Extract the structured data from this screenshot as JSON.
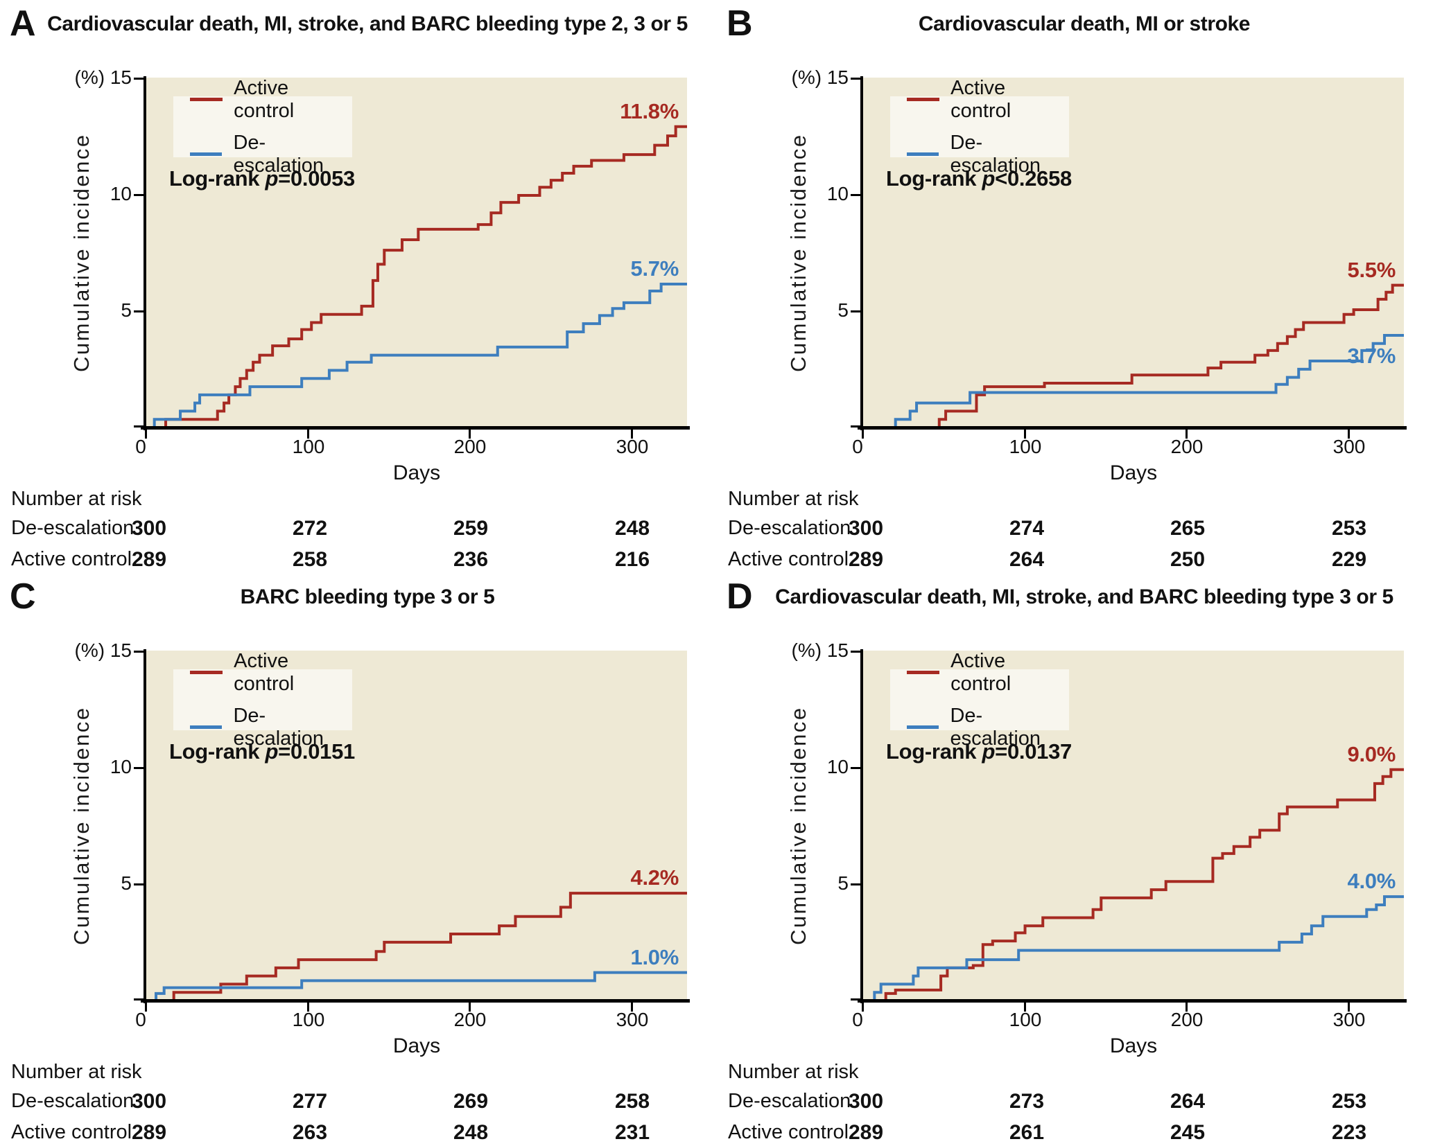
{
  "colors": {
    "active_control": "#a62a22",
    "de_escalation": "#3d7ebe",
    "plot_background": "#eee9d5",
    "legend_background": "#f8f6ee",
    "axis": "#000000",
    "text": "#111111"
  },
  "axis": {
    "y_top_label": "(%) 15",
    "y_tick_10": "10",
    "y_tick_5": "5",
    "x_tick_0": "0",
    "x_tick_1": "100",
    "x_tick_2": "200",
    "x_tick_3": "300"
  },
  "chart_data": [
    {
      "type": "line",
      "panel": "A",
      "title": "Cardiovascular death, MI, stroke, and BARC bleeding type 2, 3 or 5",
      "x_label": "Days",
      "y_label": "Cumulative incidence",
      "xlim": [
        0,
        334
      ],
      "ylim": [
        0,
        15
      ],
      "x_ticks": [
        0,
        100,
        200,
        300
      ],
      "y_ticks": [
        0,
        5,
        10,
        15
      ],
      "grid": false,
      "legend_position": "upper-left",
      "logrank": {
        "prefix": "Log-rank ",
        "p": "p",
        "value": "=0.0053"
      },
      "series": [
        {
          "name": "Active control",
          "color": "#a62a22",
          "end_label": "11.8%",
          "end_label_position": "above",
          "steps": [
            [
              0,
              0
            ],
            [
              12,
              0.35
            ],
            [
              44,
              0.7
            ],
            [
              48,
              1.05
            ],
            [
              51,
              1.4
            ],
            [
              55,
              1.75
            ],
            [
              58,
              2.1
            ],
            [
              62,
              2.45
            ],
            [
              66,
              2.8
            ],
            [
              70,
              3.1
            ],
            [
              78,
              3.5
            ],
            [
              88,
              3.8
            ],
            [
              96,
              4.2
            ],
            [
              102,
              4.5
            ],
            [
              108,
              4.85
            ],
            [
              133,
              5.2
            ],
            [
              140,
              6.3
            ],
            [
              143,
              7.0
            ],
            [
              147,
              7.6
            ],
            [
              158,
              8.05
            ],
            [
              168,
              8.5
            ],
            [
              205,
              8.7
            ],
            [
              213,
              9.2
            ],
            [
              219,
              9.65
            ],
            [
              230,
              9.95
            ],
            [
              243,
              10.3
            ],
            [
              250,
              10.6
            ],
            [
              257,
              10.9
            ],
            [
              264,
              11.2
            ],
            [
              275,
              11.45
            ],
            [
              295,
              11.7
            ],
            [
              314,
              12.1
            ],
            [
              322,
              12.5
            ],
            [
              327,
              12.9
            ]
          ]
        },
        {
          "name": "De-escalation",
          "color": "#3d7ebe",
          "end_label": "5.7%",
          "end_label_position": "above",
          "steps": [
            [
              0,
              0
            ],
            [
              5,
              0.35
            ],
            [
              21,
              0.7
            ],
            [
              30,
              1.05
            ],
            [
              33,
              1.4
            ],
            [
              64,
              1.75
            ],
            [
              96,
              2.1
            ],
            [
              113,
              2.45
            ],
            [
              124,
              2.8
            ],
            [
              139,
              3.1
            ],
            [
              217,
              3.45
            ],
            [
              260,
              4.1
            ],
            [
              270,
              4.45
            ],
            [
              280,
              4.8
            ],
            [
              288,
              5.1
            ],
            [
              295,
              5.35
            ],
            [
              311,
              5.85
            ],
            [
              318,
              6.15
            ]
          ]
        }
      ],
      "number_at_risk": {
        "header": "Number at risk",
        "rows": [
          {
            "label": "De-escalation",
            "values": [
              "300",
              "272",
              "259",
              "248"
            ]
          },
          {
            "label": "Active control",
            "values": [
              "289",
              "258",
              "236",
              "216"
            ]
          }
        ]
      }
    },
    {
      "type": "line",
      "panel": "B",
      "title": "Cardiovascular death, MI or stroke",
      "x_label": "Days",
      "y_label": "Cumulative incidence",
      "xlim": [
        0,
        334
      ],
      "ylim": [
        0,
        15
      ],
      "x_ticks": [
        0,
        100,
        200,
        300
      ],
      "y_ticks": [
        0,
        5,
        10,
        15
      ],
      "grid": false,
      "legend_position": "upper-left",
      "logrank": {
        "prefix": "Log-rank ",
        "p": "p",
        "value": "<0.2658"
      },
      "series": [
        {
          "name": "Active control",
          "color": "#a62a22",
          "end_label": "5.5%",
          "end_label_position": "above",
          "steps": [
            [
              0,
              0
            ],
            [
              47,
              0.35
            ],
            [
              51,
              0.7
            ],
            [
              70,
              1.4
            ],
            [
              75,
              1.75
            ],
            [
              112,
              1.9
            ],
            [
              166,
              2.25
            ],
            [
              213,
              2.55
            ],
            [
              221,
              2.8
            ],
            [
              242,
              3.1
            ],
            [
              250,
              3.3
            ],
            [
              256,
              3.6
            ],
            [
              262,
              3.9
            ],
            [
              267,
              4.2
            ],
            [
              272,
              4.5
            ],
            [
              297,
              4.85
            ],
            [
              303,
              5.05
            ],
            [
              318,
              5.5
            ],
            [
              323,
              5.8
            ],
            [
              327,
              6.1
            ]
          ]
        },
        {
          "name": "De-escalation",
          "color": "#3d7ebe",
          "end_label": "3.7%",
          "end_label_position": "below",
          "steps": [
            [
              0,
              0
            ],
            [
              20,
              0.35
            ],
            [
              29,
              0.7
            ],
            [
              33,
              1.05
            ],
            [
              66,
              1.5
            ],
            [
              255,
              1.85
            ],
            [
              262,
              2.15
            ],
            [
              269,
              2.5
            ],
            [
              276,
              2.85
            ],
            [
              308,
              3.3
            ],
            [
              315,
              3.6
            ],
            [
              322,
              3.95
            ]
          ]
        }
      ],
      "number_at_risk": {
        "header": "Number at risk",
        "rows": [
          {
            "label": "De-escalation",
            "values": [
              "300",
              "274",
              "265",
              "253"
            ]
          },
          {
            "label": "Active control",
            "values": [
              "289",
              "264",
              "250",
              "229"
            ]
          }
        ]
      }
    },
    {
      "type": "line",
      "panel": "C",
      "title": "BARC bleeding type 3 or 5",
      "x_label": "Days",
      "y_label": "Cumulative incidence",
      "xlim": [
        0,
        334
      ],
      "ylim": [
        0,
        15
      ],
      "x_ticks": [
        0,
        100,
        200,
        300
      ],
      "y_ticks": [
        0,
        5,
        10,
        15
      ],
      "grid": false,
      "legend_position": "upper-left",
      "logrank": {
        "prefix": "Log-rank ",
        "p": "p",
        "value": "=0.0151"
      },
      "series": [
        {
          "name": "Active control",
          "color": "#a62a22",
          "end_label": "4.2%",
          "end_label_position": "above",
          "steps": [
            [
              0,
              0
            ],
            [
              17,
              0.35
            ],
            [
              46,
              0.7
            ],
            [
              62,
              1.05
            ],
            [
              80,
              1.4
            ],
            [
              94,
              1.75
            ],
            [
              142,
              2.1
            ],
            [
              147,
              2.5
            ],
            [
              188,
              2.85
            ],
            [
              218,
              3.2
            ],
            [
              228,
              3.6
            ],
            [
              256,
              4.0
            ],
            [
              262,
              4.6
            ]
          ]
        },
        {
          "name": "De-escalation",
          "color": "#3d7ebe",
          "end_label": "1.0%",
          "end_label_position": "above",
          "steps": [
            [
              0,
              0
            ],
            [
              6,
              0.3
            ],
            [
              11,
              0.55
            ],
            [
              96,
              0.85
            ],
            [
              277,
              1.2
            ]
          ]
        }
      ],
      "number_at_risk": {
        "header": "Number at risk",
        "rows": [
          {
            "label": "De-escalation",
            "values": [
              "300",
              "277",
              "269",
              "258"
            ]
          },
          {
            "label": "Active control",
            "values": [
              "289",
              "263",
              "248",
              "231"
            ]
          }
        ]
      }
    },
    {
      "type": "line",
      "panel": "D",
      "title": "Cardiovascular death, MI, stroke, and BARC bleeding type 3 or 5",
      "x_label": "Days",
      "y_label": "Cumulative incidence",
      "xlim": [
        0,
        334
      ],
      "ylim": [
        0,
        15
      ],
      "x_ticks": [
        0,
        100,
        200,
        300
      ],
      "y_ticks": [
        0,
        5,
        10,
        15
      ],
      "grid": false,
      "legend_position": "upper-left",
      "logrank": {
        "prefix": "Log-rank ",
        "p": "p",
        "value": "=0.0137"
      },
      "series": [
        {
          "name": "Active control",
          "color": "#a62a22",
          "end_label": "9.0%",
          "end_label_position": "above",
          "steps": [
            [
              0,
              0
            ],
            [
              14,
              0.3
            ],
            [
              20,
              0.45
            ],
            [
              48,
              1.05
            ],
            [
              52,
              1.4
            ],
            [
              68,
              1.5
            ],
            [
              74,
              2.4
            ],
            [
              80,
              2.55
            ],
            [
              94,
              2.9
            ],
            [
              100,
              3.2
            ],
            [
              111,
              3.55
            ],
            [
              142,
              3.9
            ],
            [
              147,
              4.4
            ],
            [
              178,
              4.75
            ],
            [
              187,
              5.1
            ],
            [
              216,
              6.1
            ],
            [
              222,
              6.3
            ],
            [
              229,
              6.6
            ],
            [
              239,
              7.0
            ],
            [
              245,
              7.3
            ],
            [
              257,
              8.0
            ],
            [
              262,
              8.3
            ],
            [
              293,
              8.6
            ],
            [
              316,
              9.3
            ],
            [
              321,
              9.6
            ],
            [
              326,
              9.9
            ]
          ]
        },
        {
          "name": "De-escalation",
          "color": "#3d7ebe",
          "end_label": "4.0%",
          "end_label_position": "above",
          "steps": [
            [
              0,
              0
            ],
            [
              7,
              0.35
            ],
            [
              11,
              0.7
            ],
            [
              31,
              1.05
            ],
            [
              34,
              1.4
            ],
            [
              64,
              1.75
            ],
            [
              96,
              2.15
            ],
            [
              257,
              2.5
            ],
            [
              271,
              2.85
            ],
            [
              277,
              3.2
            ],
            [
              284,
              3.6
            ],
            [
              311,
              3.9
            ],
            [
              317,
              4.1
            ],
            [
              322,
              4.45
            ]
          ]
        }
      ],
      "number_at_risk": {
        "header": "Number at risk",
        "rows": [
          {
            "label": "De-escalation",
            "values": [
              "300",
              "273",
              "264",
              "253"
            ]
          },
          {
            "label": "Active control",
            "values": [
              "289",
              "261",
              "245",
              "223"
            ]
          }
        ]
      }
    }
  ]
}
